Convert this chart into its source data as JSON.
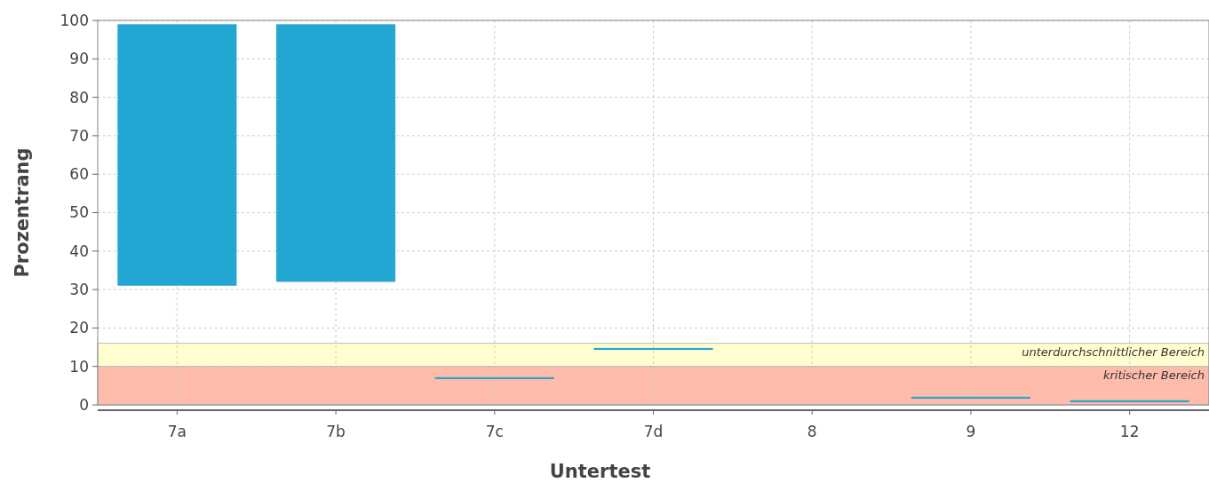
{
  "chart_data": {
    "type": "bar",
    "xlabel": "Untertest",
    "ylabel": "Prozentrang",
    "categories": [
      "7a",
      "7b",
      "7c",
      "7d",
      "8",
      "9",
      "12"
    ],
    "base": [
      31,
      32,
      6.7,
      14.3,
      null,
      1.6,
      0.7
    ],
    "values": [
      68,
      67,
      0.5,
      0.5,
      null,
      0.5,
      0.5
    ],
    "color": "#22a6d2",
    "ylim": [
      0,
      100
    ],
    "yticks": [
      0,
      10,
      20,
      30,
      40,
      50,
      60,
      70,
      80,
      90,
      100
    ],
    "grid": true,
    "bands": [
      {
        "axis": "y",
        "from": 0,
        "to": 10,
        "label": "kritischer Bereich",
        "color": "#ffbcaa"
      },
      {
        "axis": "y",
        "from": 10,
        "to": 16,
        "label": "unterdurchschnittlicher Bereich",
        "color": "#ffffd0"
      }
    ]
  }
}
